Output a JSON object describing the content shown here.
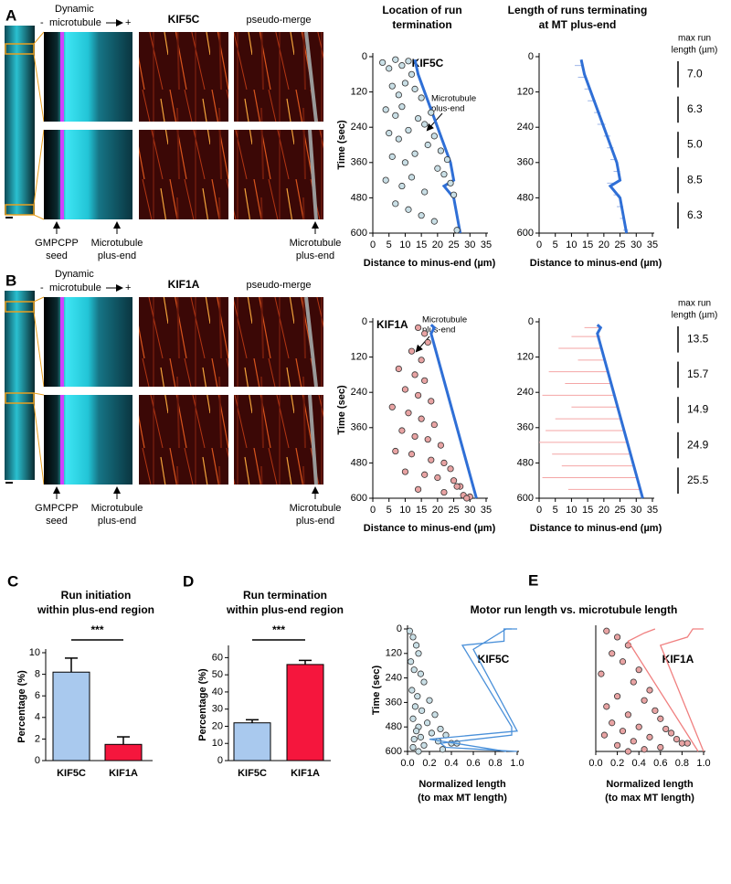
{
  "panel_a": {
    "label": "A",
    "microtubule": [
      "Dynamic",
      "microtubule"
    ],
    "minus": "-",
    "plus": "+",
    "channel": "KIF5C",
    "merge": "pseudo-merge",
    "seed": [
      "GMPCPP",
      "seed"
    ],
    "plus_end": [
      "Microtubule",
      "plus-end"
    ]
  },
  "panel_b": {
    "label": "B",
    "microtubule": [
      "Dynamic",
      "microtubule"
    ],
    "minus": "-",
    "plus": "+",
    "channel": "KIF1A",
    "merge": "pseudo-merge",
    "seed": [
      "GMPCPP",
      "seed"
    ],
    "plus_end": [
      "Microtubule",
      "plus-end"
    ]
  },
  "panel_e": {
    "label": "E",
    "title": "Motor run length vs. microtubule length"
  },
  "chart_data": [
    {
      "type": "scatter",
      "title": [
        "Location of run",
        "termination"
      ],
      "label": "KIF5C",
      "annotation": [
        "Microtubule",
        "plus-end"
      ],
      "xlabel": "Distance to minus-end (µm)",
      "ylabel": "Time (sec)",
      "xlim": [
        0,
        35
      ],
      "xticks": [
        0,
        5,
        10,
        15,
        20,
        25,
        30,
        35
      ],
      "ylim": [
        0,
        600
      ],
      "yticks": [
        0,
        120,
        240,
        360,
        480,
        600
      ],
      "y_inverted": true,
      "points": {
        "color": "#c9dfe6",
        "x": [
          3,
          5,
          7,
          9,
          11,
          12,
          6,
          8,
          10,
          13,
          15,
          4,
          7,
          9,
          14,
          16,
          18,
          5,
          8,
          11,
          17,
          19,
          21,
          6,
          10,
          13,
          20,
          22,
          23,
          4,
          9,
          12,
          16,
          24,
          25,
          7,
          11,
          15,
          19,
          26
        ],
        "y": [
          20,
          40,
          10,
          30,
          15,
          60,
          100,
          130,
          90,
          110,
          140,
          180,
          200,
          170,
          210,
          230,
          190,
          260,
          280,
          250,
          300,
          270,
          320,
          340,
          360,
          330,
          380,
          400,
          350,
          420,
          440,
          410,
          460,
          430,
          470,
          500,
          520,
          540,
          560,
          590
        ]
      },
      "lines": [
        {
          "color": "#2f6fd6",
          "x": [
            13,
            14,
            16,
            18,
            20,
            22,
            24,
            25,
            22,
            25,
            27
          ],
          "y": [
            10,
            60,
            120,
            180,
            240,
            300,
            360,
            420,
            440,
            480,
            600
          ]
        }
      ]
    },
    {
      "type": "runs",
      "title": [
        "Length of runs terminating",
        "at MT plus-end"
      ],
      "xlabel": "Distance to minus-end (µm)",
      "xlim": [
        0,
        35
      ],
      "xticks": [
        0,
        5,
        10,
        15,
        20,
        25,
        30,
        35
      ],
      "ylim": [
        0,
        600
      ],
      "yticks": [
        0,
        120,
        240,
        360,
        480,
        600
      ],
      "y_inverted": true,
      "runs": {
        "color": "#9db5e8",
        "y": [
          30,
          70,
          110,
          150,
          190,
          230,
          270,
          310,
          350,
          390,
          430,
          470,
          510,
          550,
          590
        ],
        "x_start": [
          11,
          12,
          14,
          15,
          17,
          18,
          20,
          21,
          22,
          23,
          21,
          23,
          24,
          25,
          26
        ],
        "x_end": [
          13.5,
          14.5,
          16,
          17.5,
          19,
          20.5,
          22,
          23,
          24,
          25,
          23,
          25,
          26,
          26.5,
          27.5
        ]
      },
      "lines": [
        {
          "color": "#2f6fd6",
          "x": [
            13,
            14,
            16,
            18,
            20,
            22,
            24,
            25,
            22,
            25,
            27
          ],
          "y": [
            10,
            60,
            120,
            180,
            240,
            300,
            360,
            420,
            440,
            480,
            600
          ]
        }
      ],
      "max_run_length": {
        "title": [
          "max run",
          "length (µm)"
        ],
        "values": [
          {
            "value": 7,
            "label": "7.0"
          },
          6.3,
          {
            "value": 5,
            "label": "5.0"
          },
          8.5,
          6.3
        ]
      }
    },
    {
      "type": "scatter",
      "label": "KIF1A",
      "annotation": [
        "Microtubule",
        "plus-end"
      ],
      "xlabel": "Distance to minus-end (µm)",
      "ylabel": "Time (sec)",
      "xlim": [
        0,
        35
      ],
      "xticks": [
        0,
        5,
        10,
        15,
        20,
        25,
        30,
        35
      ],
      "ylim": [
        0,
        600
      ],
      "yticks": [
        0,
        120,
        240,
        360,
        480,
        600
      ],
      "y_inverted": true,
      "points": {
        "color": "#e8a3a3",
        "x": [
          14,
          16,
          17,
          12,
          15,
          8,
          13,
          16,
          10,
          14,
          18,
          6,
          11,
          15,
          19,
          9,
          13,
          17,
          21,
          7,
          12,
          18,
          22,
          24,
          10,
          16,
          20,
          25,
          27,
          14,
          22,
          28,
          30,
          26,
          29
        ],
        "y": [
          20,
          40,
          70,
          100,
          130,
          160,
          180,
          200,
          230,
          250,
          270,
          290,
          310,
          330,
          350,
          370,
          390,
          400,
          420,
          440,
          450,
          470,
          480,
          500,
          510,
          520,
          530,
          540,
          560,
          570,
          580,
          590,
          595,
          560,
          600
        ]
      },
      "lines": [
        {
          "color": "#2f6fd6",
          "x": [
            18,
            19,
            18,
            20,
            22,
            24,
            26,
            28,
            30,
            32
          ],
          "y": [
            10,
            20,
            40,
            120,
            200,
            280,
            360,
            440,
            520,
            600
          ]
        }
      ]
    },
    {
      "type": "runs",
      "xlabel": "Distance to minus-end (µm)",
      "xlim": [
        0,
        35
      ],
      "xticks": [
        0,
        5,
        10,
        15,
        20,
        25,
        30,
        35
      ],
      "ylim": [
        0,
        600
      ],
      "yticks": [
        0,
        120,
        240,
        360,
        480,
        600
      ],
      "y_inverted": true,
      "runs": {
        "color": "#f4a6a6",
        "y": [
          20,
          50,
          90,
          130,
          170,
          210,
          250,
          290,
          330,
          370,
          410,
          450,
          490,
          530,
          570
        ],
        "x_start": [
          14,
          10,
          6,
          12,
          3,
          8,
          1,
          10,
          5,
          2,
          0,
          4,
          7,
          1,
          9
        ],
        "x_end": [
          19,
          19,
          19,
          20,
          21,
          22,
          23,
          24,
          25,
          26,
          27,
          28,
          29,
          30,
          31
        ]
      },
      "lines": [
        {
          "color": "#2f6fd6",
          "x": [
            18,
            19,
            18,
            20,
            22,
            24,
            26,
            28,
            30,
            32
          ],
          "y": [
            10,
            20,
            40,
            120,
            200,
            280,
            360,
            440,
            520,
            600
          ]
        }
      ],
      "max_run_length": {
        "title": [
          "max run",
          "length (µm)"
        ],
        "values": [
          13.5,
          15.7,
          14.9,
          24.9,
          25.5
        ]
      }
    },
    {
      "type": "bar",
      "panel": "C",
      "title": [
        "Run initiation",
        "within plus-end region"
      ],
      "ylabel": "Percentage (%)",
      "categories": [
        "KIF5C",
        "KIF1A"
      ],
      "values": [
        8.2,
        1.5
      ],
      "errors": [
        1.3,
        0.7
      ],
      "colors": [
        "#a9c9ee",
        "#f5163d"
      ],
      "ylim": [
        0,
        10
      ],
      "yticks": [
        0,
        2,
        4,
        6,
        8,
        10
      ],
      "significance": "***"
    },
    {
      "type": "bar",
      "panel": "D",
      "title": [
        "Run termination",
        "within plus-end region"
      ],
      "ylabel": "Percentage (%)",
      "categories": [
        "KIF5C",
        "KIF1A"
      ],
      "values": [
        22,
        56
      ],
      "errors": [
        1.8,
        2.4
      ],
      "colors": [
        "#a9c9ee",
        "#f5163d"
      ],
      "ylim": [
        0,
        65
      ],
      "yticks": [
        0,
        10,
        20,
        30,
        40,
        50,
        60
      ],
      "significance": "***"
    },
    {
      "type": "scatter",
      "label": "KIF5C",
      "xlabel": [
        "Normalized length",
        "(to max MT length)"
      ],
      "ylabel": "Time (sec)",
      "xlim": [
        0,
        1
      ],
      "xticks": [
        {
          "value": 0,
          "label": "0.0"
        },
        0.2,
        0.4,
        0.6,
        0.8,
        {
          "value": 1,
          "label": "1.0"
        }
      ],
      "ylim": [
        0,
        600
      ],
      "yticks": [
        0,
        120,
        240,
        360,
        480,
        600
      ],
      "y_inverted": true,
      "points": {
        "color": "#c9dfe6",
        "x": [
          0.02,
          0.05,
          0.08,
          0.1,
          0.03,
          0.06,
          0.12,
          0.15,
          0.04,
          0.09,
          0.2,
          0.07,
          0.13,
          0.25,
          0.05,
          0.18,
          0.1,
          0.3,
          0.08,
          0.22,
          0.35,
          0.12,
          0.06,
          0.28,
          0.4,
          0.15,
          0.05,
          0.32,
          0.45,
          0.1
        ],
        "y": [
          10,
          40,
          80,
          120,
          160,
          200,
          220,
          260,
          300,
          330,
          350,
          380,
          400,
          420,
          440,
          460,
          480,
          490,
          500,
          510,
          520,
          530,
          540,
          550,
          560,
          570,
          580,
          590,
          560,
          600
        ]
      },
      "lines": [
        {
          "color": "#4a90d9",
          "x": [
            1.0,
            0.88,
            0.88,
            0.5,
            0.95,
            0.95,
            0.3,
            0.35,
            1.0
          ],
          "y": [
            0,
            0,
            60,
            80,
            480,
            520,
            560,
            580,
            600
          ]
        },
        {
          "color": "#4a90d9",
          "x": [
            0.95,
            0.9,
            0.6,
            1.0,
            0.2,
            0.9
          ],
          "y": [
            0,
            0,
            100,
            500,
            540,
            600
          ]
        }
      ]
    },
    {
      "type": "scatter",
      "label": "KIF1A",
      "xlabel": [
        "Normalized length",
        "(to max MT length)"
      ],
      "xlim": [
        0,
        1
      ],
      "xticks": [
        {
          "value": 0,
          "label": "0.0"
        },
        0.2,
        0.4,
        0.6,
        0.8,
        {
          "value": 1,
          "label": "1.0"
        }
      ],
      "ylim": [
        0,
        600
      ],
      "y_inverted": true,
      "points": {
        "color": "#e8a3a3",
        "x": [
          0.1,
          0.2,
          0.3,
          0.15,
          0.25,
          0.4,
          0.05,
          0.35,
          0.5,
          0.2,
          0.45,
          0.1,
          0.55,
          0.3,
          0.6,
          0.15,
          0.4,
          0.65,
          0.25,
          0.7,
          0.08,
          0.5,
          0.75,
          0.35,
          0.8,
          0.2,
          0.6,
          0.45,
          0.85,
          0.3
        ],
        "y": [
          10,
          40,
          80,
          120,
          160,
          200,
          220,
          260,
          300,
          330,
          350,
          380,
          400,
          420,
          440,
          460,
          480,
          490,
          500,
          510,
          520,
          530,
          540,
          550,
          560,
          570,
          580,
          590,
          560,
          600
        ]
      },
      "lines": [
        {
          "color": "#f08080",
          "x": [
            1.0,
            0.9,
            0.85,
            0.6,
            1.0
          ],
          "y": [
            0,
            0,
            40,
            80,
            600
          ]
        },
        {
          "color": "#f08080",
          "x": [
            0.55,
            0.45,
            0.3,
            0.95
          ],
          "y": [
            0,
            20,
            60,
            600
          ]
        }
      ]
    }
  ]
}
